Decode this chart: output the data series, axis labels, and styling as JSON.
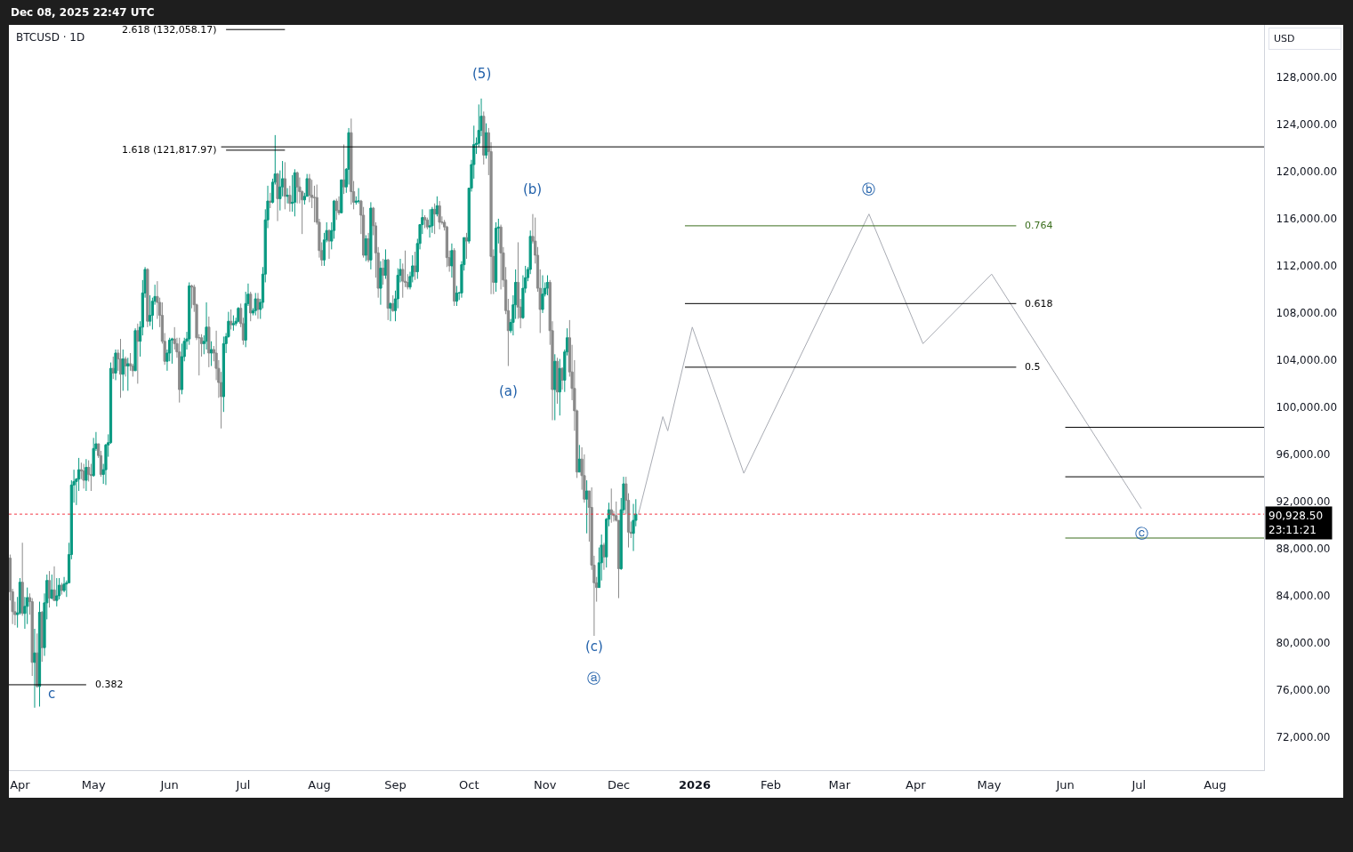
{
  "chart_data": {
    "type": "candlestick",
    "title": "BTCUSD · 1D",
    "subtitle": "Dec 08, 2025 22:47 UTC",
    "ylabel": "USD",
    "x": [
      "2025-03-28",
      "2025-03-29",
      "2025-03-30",
      "2025-03-31",
      "2025-04-01",
      "2025-04-02",
      "2025-04-03",
      "2025-04-04",
      "2025-04-05",
      "2025-04-06",
      "2025-04-07",
      "2025-04-08",
      "2025-04-09",
      "2025-04-10",
      "2025-04-11",
      "2025-04-12",
      "2025-04-13",
      "2025-04-14",
      "2025-04-15",
      "2025-04-16",
      "2025-04-17",
      "2025-04-18",
      "2025-04-19",
      "2025-04-20",
      "2025-04-21",
      "2025-04-22",
      "2025-04-23",
      "2025-04-24",
      "2025-04-25",
      "2025-04-26",
      "2025-04-27",
      "2025-04-28",
      "2025-04-29",
      "2025-04-30",
      "2025-05-01",
      "2025-05-02",
      "2025-05-03",
      "2025-05-04",
      "2025-05-05",
      "2025-05-06",
      "2025-05-07",
      "2025-05-08",
      "2025-05-09",
      "2025-05-10",
      "2025-05-11",
      "2025-05-12",
      "2025-05-13",
      "2025-05-14",
      "2025-05-15",
      "2025-05-16",
      "2025-05-17",
      "2025-05-18",
      "2025-05-19",
      "2025-05-20",
      "2025-05-21",
      "2025-05-22",
      "2025-05-23",
      "2025-05-24",
      "2025-05-25",
      "2025-05-26",
      "2025-05-27",
      "2025-05-28",
      "2025-05-29",
      "2025-05-30",
      "2025-05-31",
      "2025-06-01",
      "2025-06-02",
      "2025-06-03",
      "2025-06-04",
      "2025-06-05",
      "2025-06-06",
      "2025-06-07",
      "2025-06-08",
      "2025-06-09",
      "2025-06-10",
      "2025-06-11",
      "2025-06-12",
      "2025-06-13",
      "2025-06-14",
      "2025-06-15",
      "2025-06-16",
      "2025-06-17",
      "2025-06-18",
      "2025-06-19",
      "2025-06-20",
      "2025-06-21",
      "2025-06-22",
      "2025-06-23",
      "2025-06-24",
      "2025-06-25",
      "2025-06-26",
      "2025-06-27",
      "2025-06-28",
      "2025-06-29",
      "2025-06-30",
      "2025-07-01",
      "2025-07-02",
      "2025-07-03",
      "2025-07-04",
      "2025-07-05",
      "2025-07-06",
      "2025-07-07",
      "2025-07-08",
      "2025-07-09",
      "2025-07-10",
      "2025-07-11",
      "2025-07-12",
      "2025-07-13",
      "2025-07-14",
      "2025-07-15",
      "2025-07-16",
      "2025-07-17",
      "2025-07-18",
      "2025-07-19",
      "2025-07-20",
      "2025-07-21",
      "2025-07-22",
      "2025-07-23",
      "2025-07-24",
      "2025-07-25",
      "2025-07-26",
      "2025-07-27",
      "2025-07-28",
      "2025-07-29",
      "2025-07-30",
      "2025-07-31",
      "2025-08-01",
      "2025-08-02",
      "2025-08-03",
      "2025-08-04",
      "2025-08-05",
      "2025-08-06",
      "2025-08-07",
      "2025-08-08",
      "2025-08-09",
      "2025-08-10",
      "2025-08-11",
      "2025-08-12",
      "2025-08-13",
      "2025-08-14",
      "2025-08-15",
      "2025-08-16",
      "2025-08-17",
      "2025-08-18",
      "2025-08-19",
      "2025-08-20",
      "2025-08-21",
      "2025-08-22",
      "2025-08-23",
      "2025-08-24",
      "2025-08-25",
      "2025-08-26",
      "2025-08-27",
      "2025-08-28",
      "2025-08-29",
      "2025-08-30",
      "2025-08-31",
      "2025-09-01",
      "2025-09-02",
      "2025-09-03",
      "2025-09-04",
      "2025-09-05",
      "2025-09-06",
      "2025-09-07",
      "2025-09-08",
      "2025-09-09",
      "2025-09-10",
      "2025-09-11",
      "2025-09-12",
      "2025-09-13",
      "2025-09-14",
      "2025-09-15",
      "2025-09-16",
      "2025-09-17",
      "2025-09-18",
      "2025-09-19",
      "2025-09-20",
      "2025-09-21",
      "2025-09-22",
      "2025-09-23",
      "2025-09-24",
      "2025-09-25",
      "2025-09-26",
      "2025-09-27",
      "2025-09-28",
      "2025-09-29",
      "2025-09-30",
      "2025-10-01",
      "2025-10-02",
      "2025-10-03",
      "2025-10-04",
      "2025-10-05",
      "2025-10-06",
      "2025-10-07",
      "2025-10-08",
      "2025-10-09",
      "2025-10-10",
      "2025-10-11",
      "2025-10-12",
      "2025-10-13",
      "2025-10-14",
      "2025-10-15",
      "2025-10-16",
      "2025-10-17",
      "2025-10-18",
      "2025-10-19",
      "2025-10-20",
      "2025-10-21",
      "2025-10-22",
      "2025-10-23",
      "2025-10-24",
      "2025-10-25",
      "2025-10-26",
      "2025-10-27",
      "2025-10-28",
      "2025-10-29",
      "2025-10-30",
      "2025-10-31",
      "2025-11-01",
      "2025-11-02",
      "2025-11-03",
      "2025-11-04",
      "2025-11-05",
      "2025-11-06",
      "2025-11-07",
      "2025-11-08",
      "2025-11-09",
      "2025-11-10",
      "2025-11-11",
      "2025-11-12",
      "2025-11-13",
      "2025-11-14",
      "2025-11-15",
      "2025-11-16",
      "2025-11-17",
      "2025-11-18",
      "2025-11-19",
      "2025-11-20",
      "2025-11-21",
      "2025-11-22",
      "2025-11-23",
      "2025-11-24",
      "2025-11-25",
      "2025-11-26",
      "2025-11-27",
      "2025-11-28",
      "2025-11-29",
      "2025-11-30",
      "2025-12-01",
      "2025-12-02",
      "2025-12-03",
      "2025-12-04",
      "2025-12-05",
      "2025-12-06",
      "2025-12-07",
      "2025-12-08"
    ],
    "ohlc": [
      [
        87200,
        87500,
        83600,
        84350
      ],
      [
        84350,
        84600,
        81600,
        82650
      ],
      [
        82650,
        83500,
        81500,
        82400
      ],
      [
        82400,
        83900,
        81300,
        82550
      ],
      [
        82550,
        85500,
        82400,
        85150
      ],
      [
        85150,
        88500,
        82300,
        82500
      ],
      [
        82500,
        83900,
        81200,
        83100
      ],
      [
        83100,
        84700,
        81600,
        83850
      ],
      [
        83850,
        84200,
        82400,
        83500
      ],
      [
        83500,
        83800,
        77200,
        78350
      ],
      [
        78350,
        81200,
        74500,
        79150
      ],
      [
        79150,
        80800,
        76200,
        76300
      ],
      [
        76300,
        83500,
        74600,
        82600
      ],
      [
        82600,
        82700,
        78400,
        79600
      ],
      [
        79600,
        84200,
        78900,
        83400
      ],
      [
        83400,
        85800,
        82000,
        85300
      ],
      [
        85300,
        86100,
        83000,
        83800
      ],
      [
        83800,
        85800,
        83700,
        84500
      ],
      [
        84500,
        86500,
        83600,
        83600
      ],
      [
        83600,
        85500,
        83100,
        84000
      ],
      [
        84000,
        85500,
        83700,
        84900
      ],
      [
        84900,
        85100,
        84100,
        84450
      ],
      [
        84450,
        85600,
        84300,
        85000
      ],
      [
        85000,
        85300,
        83900,
        85100
      ],
      [
        85100,
        88500,
        85100,
        87500
      ],
      [
        87500,
        93800,
        87100,
        93400
      ],
      [
        93400,
        94700,
        91900,
        93700
      ],
      [
        93700,
        94000,
        91700,
        93900
      ],
      [
        93900,
        95700,
        92900,
        94700
      ],
      [
        94700,
        95300,
        93900,
        94600
      ],
      [
        94600,
        95200,
        93100,
        93800
      ],
      [
        93800,
        95600,
        92900,
        94900
      ],
      [
        94900,
        95500,
        93700,
        94300
      ],
      [
        94300,
        95200,
        92900,
        94200
      ],
      [
        94200,
        97400,
        94100,
        96500
      ],
      [
        96500,
        97900,
        96300,
        96900
      ],
      [
        96900,
        96900,
        95700,
        95900
      ],
      [
        95900,
        96300,
        94100,
        94300
      ],
      [
        94300,
        95200,
        93500,
        94700
      ],
      [
        94700,
        96900,
        93400,
        96800
      ],
      [
        96800,
        97700,
        95800,
        97000
      ],
      [
        97000,
        103800,
        96900,
        103300
      ],
      [
        103300,
        104300,
        102400,
        102900
      ],
      [
        102900,
        104900,
        102300,
        104600
      ],
      [
        104600,
        104900,
        103100,
        104100
      ],
      [
        104100,
        105800,
        100800,
        102800
      ],
      [
        102800,
        104900,
        101400,
        104100
      ],
      [
        104100,
        104300,
        102600,
        103500
      ],
      [
        103500,
        104200,
        101400,
        103700
      ],
      [
        103700,
        104600,
        103100,
        103500
      ],
      [
        103500,
        103700,
        102600,
        103100
      ],
      [
        103100,
        106700,
        103100,
        106500
      ],
      [
        106500,
        107100,
        102000,
        105600
      ],
      [
        105600,
        107300,
        104300,
        106800
      ],
      [
        106800,
        110800,
        106100,
        109700
      ],
      [
        109700,
        111900,
        109300,
        111700
      ],
      [
        111700,
        111800,
        106800,
        107300
      ],
      [
        107300,
        109500,
        106900,
        107800
      ],
      [
        107800,
        109300,
        106600,
        109000
      ],
      [
        109000,
        110400,
        108700,
        109400
      ],
      [
        109400,
        110700,
        107500,
        108900
      ],
      [
        108900,
        109300,
        106800,
        107800
      ],
      [
        107800,
        108900,
        105400,
        105600
      ],
      [
        105600,
        106300,
        103600,
        103900
      ],
      [
        103900,
        104900,
        103100,
        104600
      ],
      [
        104600,
        105900,
        103900,
        105700
      ],
      [
        105700,
        105900,
        103700,
        105800
      ],
      [
        105800,
        106800,
        104900,
        105400
      ],
      [
        105400,
        105900,
        104200,
        104700
      ],
      [
        104700,
        105900,
        100400,
        101500
      ],
      [
        101500,
        105400,
        101100,
        104300
      ],
      [
        104300,
        105900,
        103900,
        105600
      ],
      [
        105600,
        106400,
        104900,
        105800
      ],
      [
        105800,
        110600,
        105300,
        110300
      ],
      [
        110300,
        110400,
        108400,
        110200
      ],
      [
        110200,
        110400,
        108100,
        108700
      ],
      [
        108700,
        108800,
        105700,
        105900
      ],
      [
        105900,
        106200,
        102700,
        105900
      ],
      [
        105900,
        106200,
        104300,
        105400
      ],
      [
        105400,
        106100,
        104500,
        105600
      ],
      [
        105600,
        108900,
        104900,
        106800
      ],
      [
        106800,
        107700,
        103400,
        104600
      ],
      [
        104600,
        105600,
        103500,
        104900
      ],
      [
        104900,
        105200,
        103900,
        104600
      ],
      [
        104600,
        106500,
        102300,
        103300
      ],
      [
        103300,
        104000,
        100800,
        102100
      ],
      [
        102100,
        103000,
        98200,
        100900
      ],
      [
        100900,
        106000,
        99600,
        105400
      ],
      [
        105400,
        106300,
        104600,
        106000
      ],
      [
        106000,
        108100,
        105900,
        107300
      ],
      [
        107300,
        108300,
        106600,
        107000
      ],
      [
        107000,
        107800,
        106500,
        107100
      ],
      [
        107100,
        107600,
        106900,
        107300
      ],
      [
        107300,
        108500,
        107200,
        108400
      ],
      [
        108400,
        108800,
        106800,
        107100
      ],
      [
        107100,
        107600,
        105300,
        105700
      ],
      [
        105700,
        109800,
        105100,
        108800
      ],
      [
        108800,
        110500,
        108600,
        109600
      ],
      [
        109600,
        109800,
        107300,
        108000
      ],
      [
        108000,
        108400,
        107800,
        108200
      ],
      [
        108200,
        109700,
        107800,
        109200
      ],
      [
        109200,
        109700,
        107500,
        108300
      ],
      [
        108300,
        109200,
        107500,
        108900
      ],
      [
        108900,
        111900,
        108400,
        111300
      ],
      [
        111300,
        116800,
        110600,
        115900
      ],
      [
        115900,
        118800,
        115200,
        117500
      ],
      [
        117500,
        118200,
        116900,
        117400
      ],
      [
        117400,
        119400,
        117300,
        119100
      ],
      [
        119100,
        123100,
        118900,
        119800
      ],
      [
        119800,
        119900,
        115800,
        117700
      ],
      [
        117700,
        120100,
        116700,
        118700
      ],
      [
        118700,
        120900,
        117900,
        119400
      ],
      [
        119400,
        120800,
        116800,
        117900
      ],
      [
        117900,
        118600,
        117300,
        118000
      ],
      [
        118000,
        118800,
        116600,
        117300
      ],
      [
        117300,
        119700,
        116600,
        117400
      ],
      [
        117400,
        120200,
        116200,
        119900
      ],
      [
        119900,
        120000,
        117300,
        118700
      ],
      [
        118700,
        119500,
        117300,
        118300
      ],
      [
        118300,
        118400,
        114700,
        117600
      ],
      [
        117600,
        118200,
        117200,
        117900
      ],
      [
        117900,
        119800,
        117900,
        119400
      ],
      [
        119400,
        119800,
        117400,
        118000
      ],
      [
        118000,
        119300,
        116900,
        117800
      ],
      [
        117800,
        118800,
        115700,
        117800
      ],
      [
        117800,
        118900,
        115500,
        115700
      ],
      [
        115700,
        116000,
        112700,
        113300
      ],
      [
        113300,
        114000,
        112000,
        112500
      ],
      [
        112500,
        114800,
        112000,
        114200
      ],
      [
        114200,
        115700,
        114000,
        115000
      ],
      [
        115000,
        115100,
        112600,
        114100
      ],
      [
        114100,
        115700,
        113400,
        115000
      ],
      [
        115000,
        117600,
        114300,
        117500
      ],
      [
        117500,
        117700,
        115900,
        116700
      ],
      [
        116700,
        117900,
        116300,
        116500
      ],
      [
        116500,
        119300,
        116500,
        119300
      ],
      [
        119300,
        122300,
        118100,
        118700
      ],
      [
        118700,
        120300,
        118200,
        120200
      ],
      [
        120200,
        123700,
        118900,
        123300
      ],
      [
        123300,
        124500,
        117200,
        118300
      ],
      [
        118300,
        119200,
        116800,
        117400
      ],
      [
        117400,
        117900,
        117200,
        117500
      ],
      [
        117500,
        118600,
        117300,
        117500
      ],
      [
        117500,
        117600,
        114700,
        116300
      ],
      [
        116300,
        117000,
        112700,
        112900
      ],
      [
        112900,
        114600,
        112400,
        114300
      ],
      [
        114300,
        114800,
        112300,
        112500
      ],
      [
        112500,
        117400,
        111700,
        116900
      ],
      [
        116900,
        117000,
        114600,
        115400
      ],
      [
        115400,
        115700,
        111000,
        113100
      ],
      [
        113100,
        113600,
        109300,
        110100
      ],
      [
        110100,
        112400,
        108700,
        111800
      ],
      [
        111800,
        112600,
        110400,
        111200
      ],
      [
        111200,
        113400,
        110900,
        112500
      ],
      [
        112500,
        112600,
        107400,
        108400
      ],
      [
        108400,
        108900,
        107300,
        108800
      ],
      [
        108800,
        109500,
        108100,
        108200
      ],
      [
        108200,
        109900,
        107300,
        109200
      ],
      [
        109200,
        111800,
        108400,
        111200
      ],
      [
        111200,
        112600,
        110600,
        111700
      ],
      [
        111700,
        112200,
        109300,
        110700
      ],
      [
        110700,
        113300,
        110200,
        110600
      ],
      [
        110600,
        111300,
        110000,
        110200
      ],
      [
        110200,
        111500,
        110000,
        111100
      ],
      [
        111100,
        112900,
        110600,
        112000
      ],
      [
        112000,
        113200,
        110800,
        111500
      ],
      [
        111500,
        114300,
        110900,
        113900
      ],
      [
        113900,
        115500,
        113400,
        115500
      ],
      [
        115500,
        116800,
        114700,
        116100
      ],
      [
        116100,
        116300,
        115200,
        115900
      ],
      [
        115900,
        116100,
        115100,
        115300
      ],
      [
        115300,
        116800,
        114400,
        115400
      ],
      [
        115400,
        117000,
        114800,
        116800
      ],
      [
        116800,
        117300,
        114700,
        116400
      ],
      [
        116400,
        117900,
        116200,
        117100
      ],
      [
        117100,
        117500,
        115100,
        115700
      ],
      [
        115700,
        116200,
        115500,
        115700
      ],
      [
        115700,
        115900,
        115000,
        115300
      ],
      [
        115300,
        115400,
        111900,
        112700
      ],
      [
        112700,
        113300,
        111500,
        112000
      ],
      [
        112000,
        113900,
        111000,
        113300
      ],
      [
        113300,
        113500,
        108600,
        109000
      ],
      [
        109000,
        110300,
        108600,
        109700
      ],
      [
        109700,
        109800,
        109100,
        109700
      ],
      [
        109700,
        112400,
        109300,
        112100
      ],
      [
        112100,
        114400,
        111600,
        114400
      ],
      [
        114400,
        114800,
        112600,
        114100
      ],
      [
        114100,
        118600,
        113900,
        118600
      ],
      [
        118600,
        121000,
        118300,
        120600
      ],
      [
        120600,
        123900,
        119400,
        122300
      ],
      [
        122300,
        122900,
        121500,
        122400
      ],
      [
        122400,
        125700,
        122100,
        123500
      ],
      [
        123500,
        126200,
        123000,
        124700
      ],
      [
        124700,
        125100,
        120600,
        121400
      ],
      [
        121400,
        124100,
        121100,
        123300
      ],
      [
        123300,
        123700,
        119700,
        121700
      ],
      [
        121700,
        122500,
        109600,
        112800
      ],
      [
        112800,
        113400,
        109600,
        110600
      ],
      [
        110600,
        115700,
        109800,
        115200
      ],
      [
        115200,
        116000,
        113900,
        115300
      ],
      [
        115300,
        115500,
        110000,
        113100
      ],
      [
        113100,
        113600,
        110200,
        110800
      ],
      [
        110800,
        111900,
        107900,
        108200
      ],
      [
        108200,
        109200,
        103500,
        106500
      ],
      [
        106500,
        107500,
        106300,
        107200
      ],
      [
        107200,
        109500,
        106100,
        108700
      ],
      [
        108700,
        111700,
        107500,
        110600
      ],
      [
        110600,
        114000,
        107500,
        108500
      ],
      [
        108500,
        109200,
        106700,
        107600
      ],
      [
        107600,
        111200,
        107500,
        110100
      ],
      [
        110100,
        112000,
        109700,
        111000
      ],
      [
        111000,
        111900,
        110700,
        111700
      ],
      [
        111700,
        115000,
        111300,
        114500
      ],
      [
        114500,
        116400,
        113900,
        114100
      ],
      [
        114100,
        116100,
        112200,
        112900
      ],
      [
        112900,
        113600,
        109800,
        110100
      ],
      [
        110100,
        111700,
        106300,
        108300
      ],
      [
        108300,
        111200,
        108000,
        109600
      ],
      [
        109600,
        110600,
        109400,
        110100
      ],
      [
        110100,
        111200,
        109500,
        110600
      ],
      [
        110600,
        110800,
        105300,
        106500
      ],
      [
        106500,
        107300,
        98900,
        101500
      ],
      [
        101500,
        104500,
        98900,
        103900
      ],
      [
        103900,
        104200,
        100300,
        101300
      ],
      [
        101300,
        104100,
        99300,
        103300
      ],
      [
        103300,
        103400,
        101500,
        102300
      ],
      [
        102300,
        104900,
        101300,
        104700
      ],
      [
        104700,
        106700,
        104400,
        105900
      ],
      [
        105900,
        107400,
        102600,
        103000
      ],
      [
        103000,
        105300,
        100600,
        101600
      ],
      [
        101600,
        104000,
        98000,
        99700
      ],
      [
        99700,
        99800,
        94000,
        94500
      ],
      [
        94500,
        96800,
        94500,
        95600
      ],
      [
        95600,
        96600,
        93000,
        94200
      ],
      [
        94200,
        96000,
        91900,
        92200
      ],
      [
        92200,
        93800,
        89300,
        92900
      ],
      [
        92900,
        92900,
        88600,
        91500
      ],
      [
        91500,
        93200,
        86200,
        86600
      ],
      [
        86600,
        87400,
        80600,
        85100
      ],
      [
        85100,
        85600,
        83500,
        84700
      ],
      [
        84700,
        88100,
        84700,
        86800
      ],
      [
        86800,
        89200,
        85300,
        88300
      ],
      [
        88300,
        88500,
        86200,
        87300
      ],
      [
        87300,
        90600,
        86400,
        90500
      ],
      [
        90500,
        91900,
        89900,
        91300
      ],
      [
        91300,
        93100,
        90200,
        90900
      ],
      [
        90900,
        91200,
        90300,
        90800
      ],
      [
        90800,
        92000,
        90300,
        90400
      ],
      [
        90400,
        90400,
        83800,
        86300
      ],
      [
        86300,
        92300,
        86200,
        91300
      ],
      [
        91300,
        94100,
        91000,
        93500
      ],
      [
        93500,
        94100,
        90900,
        92100
      ],
      [
        92100,
        92700,
        88100,
        89400
      ],
      [
        89400,
        90300,
        88900,
        89300
      ],
      [
        89300,
        91800,
        87800,
        90400
      ],
      [
        90400,
        92200,
        89900,
        90928.5
      ]
    ],
    "series": [
      {
        "type": "line",
        "color": "#a8abb3",
        "x": [
          "2025-12-09",
          "2025-12-19",
          "2025-12-21",
          "2025-12-31",
          "2026-01-21",
          "2026-03-13",
          "2026-04-04",
          "2026-05-02",
          "2026-07-02"
        ],
        "values": [
          90900,
          99200,
          98000,
          106800,
          94400,
          116400,
          105400,
          111300,
          91400
        ]
      },
      {
        "type": "line",
        "name": "2.618 (132,058.17)",
        "color": "#000000",
        "x": [
          "2025-07-18",
          "2025-06-24"
        ],
        "values": [
          132058.17,
          132058.17
        ]
      },
      {
        "type": "line",
        "name": "1.618 (121,817.97)",
        "color": "#000000",
        "x": [
          "2025-07-18",
          "2025-06-24"
        ],
        "values": [
          121817.97,
          121817.97
        ]
      },
      {
        "type": "line",
        "color": "#000000",
        "x": [
          "2025-06-22",
          "2026-08-21"
        ],
        "values": [
          122100,
          122100
        ]
      },
      {
        "type": "line",
        "name": "0.764",
        "color": "#3b6e1e",
        "x": [
          "2025-12-28",
          "2026-05-12"
        ],
        "values": [
          115400,
          115400
        ]
      },
      {
        "type": "line",
        "name": "0.618",
        "color": "#000000",
        "x": [
          "2025-12-28",
          "2026-05-12"
        ],
        "values": [
          108800,
          108800
        ]
      },
      {
        "type": "line",
        "name": "0.5",
        "color": "#000000",
        "x": [
          "2025-12-28",
          "2026-05-12"
        ],
        "values": [
          103400,
          103400
        ]
      },
      {
        "type": "line",
        "name": "0.382",
        "color": "#000000",
        "x": [
          "2025-03-27T12:00",
          "2025-04-28"
        ],
        "values": [
          76450,
          76450
        ]
      },
      {
        "type": "line",
        "color": "#000000",
        "x": [
          "2026-06-01",
          "2026-08-21"
        ],
        "values": [
          98300,
          98300
        ]
      },
      {
        "type": "line",
        "color": "#000000",
        "x": [
          "2026-06-01",
          "2026-08-21"
        ],
        "values": [
          94100,
          94100
        ]
      },
      {
        "type": "line",
        "color": "#3b6e1e",
        "x": [
          "2026-06-01",
          "2026-08-21"
        ],
        "values": [
          88900,
          88900
        ]
      }
    ],
    "ref_lines": [
      {
        "axis": "y",
        "value": 90928.5,
        "label": "90,928.50\n23:11:21",
        "color": "#f23645",
        "line_style": "dotted"
      }
    ],
    "annotations": [
      {
        "text": "(5)",
        "x": "2025-10-06",
        "y": 126200
      },
      {
        "text": "(b)",
        "x": "2025-10-27",
        "y": 116400
      },
      {
        "text": "(a)",
        "x": "2025-10-17",
        "y": 103500
      },
      {
        "text": "(c)",
        "x": "2025-11-21",
        "y": 80600
      },
      {
        "text": "ⓐ",
        "x": "2025-11-21",
        "y": 80600
      },
      {
        "text": "ⓑ",
        "x": "2026-03-13",
        "y": 116400
      },
      {
        "text": "ⓒ",
        "x": "2026-07-02",
        "y": 91400
      },
      {
        "text": "c",
        "x": "2025-04-14",
        "y": 76450
      }
    ],
    "xlim": [
      "2025-03-27T12:00",
      "2026-08-21"
    ],
    "xticks": [
      {
        "value": "2025-04-01",
        "label": "Apr"
      },
      {
        "value": "2025-05-01",
        "label": "May"
      },
      {
        "value": "2025-06-01",
        "label": "Jun"
      },
      {
        "value": "2025-07-01",
        "label": "Jul"
      },
      {
        "value": "2025-08-01",
        "label": "Aug"
      },
      {
        "value": "2025-09-01",
        "label": "Sep"
      },
      {
        "value": "2025-10-01",
        "label": "Oct"
      },
      {
        "value": "2025-11-01",
        "label": "Nov"
      },
      {
        "value": "2025-12-01",
        "label": "Dec"
      },
      {
        "value": "2026-01-01",
        "label": "2026"
      },
      {
        "value": "2026-02-01",
        "label": "Feb"
      },
      {
        "value": "2026-03-01",
        "label": "Mar"
      },
      {
        "value": "2026-04-01",
        "label": "Apr"
      },
      {
        "value": "2026-05-01",
        "label": "May"
      },
      {
        "value": "2026-06-01",
        "label": "Jun"
      },
      {
        "value": "2026-07-01",
        "label": "Jul"
      },
      {
        "value": "2026-08-01",
        "label": "Aug"
      }
    ],
    "ylim": [
      69200,
      132450
    ],
    "yticks": [
      {
        "value": 72000,
        "label": "72,000.00"
      },
      {
        "value": 76000,
        "label": "76,000.00"
      },
      {
        "value": 80000,
        "label": "80,000.00"
      },
      {
        "value": 84000,
        "label": "84,000.00"
      },
      {
        "value": 88000,
        "label": "88,000.00"
      },
      {
        "value": 92000,
        "label": "92,000.00"
      },
      {
        "value": 96000,
        "label": "96,000.00"
      },
      {
        "value": 100000,
        "label": "100,000.00"
      },
      {
        "value": 104000,
        "label": "104,000.00"
      },
      {
        "value": 108000,
        "label": "108,000.00"
      },
      {
        "value": 112000,
        "label": "112,000.00"
      },
      {
        "value": 116000,
        "label": "116,000.00"
      },
      {
        "value": 120000,
        "label": "120,000.00"
      },
      {
        "value": 124000,
        "label": "124,000.00"
      },
      {
        "value": 128000,
        "label": "128,000.00"
      }
    ]
  }
}
